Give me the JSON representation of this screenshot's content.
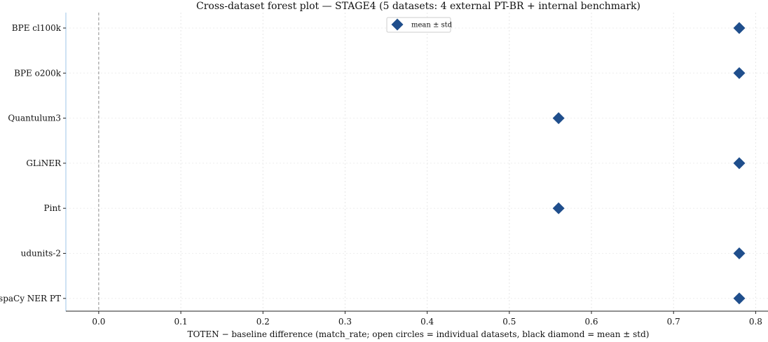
{
  "chart_data": {
    "type": "scatter",
    "title": "Cross-dataset forest plot — STAGE4 (5 datasets: 4 external PT-BR + internal benchmark)",
    "xlabel": "TOTEN − baseline difference (match_rate; open circles = individual datasets, black diamond = mean ± std)",
    "ylabel": "",
    "categories": [
      "BPE cl100k",
      "BPE o200k",
      "Quantulum3",
      "GLiNER",
      "Pint",
      "udunits-2",
      "spaCy NER PT"
    ],
    "series": [
      {
        "name": "mean ± std",
        "marker": "diamond",
        "color": "#1f4e8c",
        "values": [
          0.78,
          0.78,
          0.56,
          0.78,
          0.56,
          0.78,
          0.78
        ]
      }
    ],
    "xlim": [
      -0.04,
      0.815
    ],
    "xticks": [
      "0.0",
      "0.1",
      "0.2",
      "0.3",
      "0.4",
      "0.5",
      "0.6",
      "0.7",
      "0.8"
    ],
    "reference_line": 0,
    "grid": true,
    "legend_position": "top-center"
  }
}
